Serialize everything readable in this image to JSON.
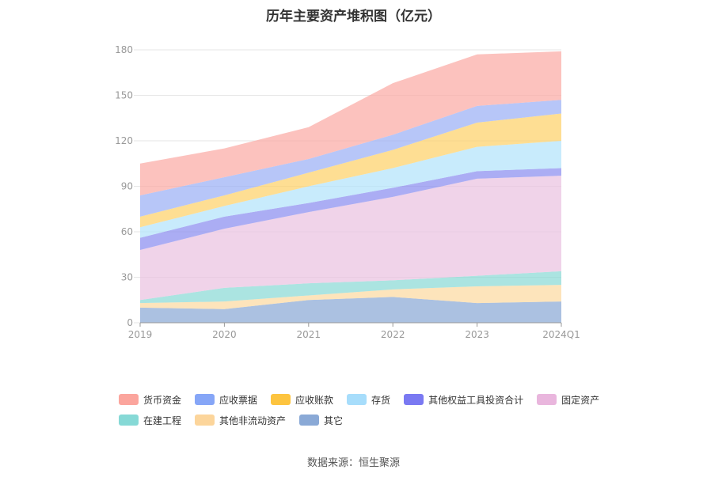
{
  "title": "历年主要资产堆积图（亿元）",
  "source": "数据来源：恒生聚源",
  "chart_data": {
    "type": "area",
    "stacked": true,
    "x": [
      "2019",
      "2020",
      "2021",
      "2022",
      "2023",
      "2024Q1"
    ],
    "ylim": [
      0,
      180
    ],
    "yticks": [
      "0",
      "30",
      "60",
      "90",
      "120",
      "150",
      "180"
    ],
    "grid": true,
    "legend_position": "bottom",
    "series": [
      {
        "name": "其它",
        "color": "#8aa9d6",
        "values": [
          10,
          9,
          15,
          17,
          13,
          14
        ]
      },
      {
        "name": "其他非流动资产",
        "color": "#fcd9a1",
        "values": [
          3,
          5,
          3,
          5,
          11,
          11
        ]
      },
      {
        "name": "在建工程",
        "color": "#8ad9d6",
        "values": [
          2,
          9,
          8,
          6,
          7,
          9
        ]
      },
      {
        "name": "固定资产",
        "color": "#eac2e0",
        "values": [
          33,
          39,
          47,
          55,
          64,
          63
        ]
      },
      {
        "name": "其他权益工具投资合计",
        "color": "#8a8ef0",
        "values": [
          8,
          8,
          6,
          6,
          5,
          5
        ]
      },
      {
        "name": "存货",
        "color": "#b3e3fb",
        "values": [
          7,
          7,
          11,
          13,
          16,
          18
        ]
      },
      {
        "name": "应收账款",
        "color": "#fdd16a",
        "values": [
          7,
          7,
          9,
          12,
          16,
          18
        ]
      },
      {
        "name": "应收票据",
        "color": "#9bb0f5",
        "values": [
          14,
          12,
          9,
          10,
          11,
          9
        ]
      },
      {
        "name": "货币资金",
        "color": "#fbaba5",
        "values": [
          21,
          19,
          21,
          34,
          34,
          32
        ]
      }
    ]
  },
  "legend_rows": [
    [
      {
        "label": "货币资金",
        "color": "#fba59d"
      },
      {
        "label": "应收票据",
        "color": "#86a6f7"
      },
      {
        "label": "应收账款",
        "color": "#fdc43f"
      },
      {
        "label": "存货",
        "color": "#a7ddfb"
      },
      {
        "label": "其他权益工具投资合计",
        "color": "#7a79f2"
      },
      {
        "label": "固定资产",
        "color": "#e9b6dd"
      }
    ],
    [
      {
        "label": "在建工程",
        "color": "#86d9d6"
      },
      {
        "label": "其他非流动资产",
        "color": "#fcd59b"
      },
      {
        "label": "其它",
        "color": "#8aa9d6"
      }
    ]
  ]
}
